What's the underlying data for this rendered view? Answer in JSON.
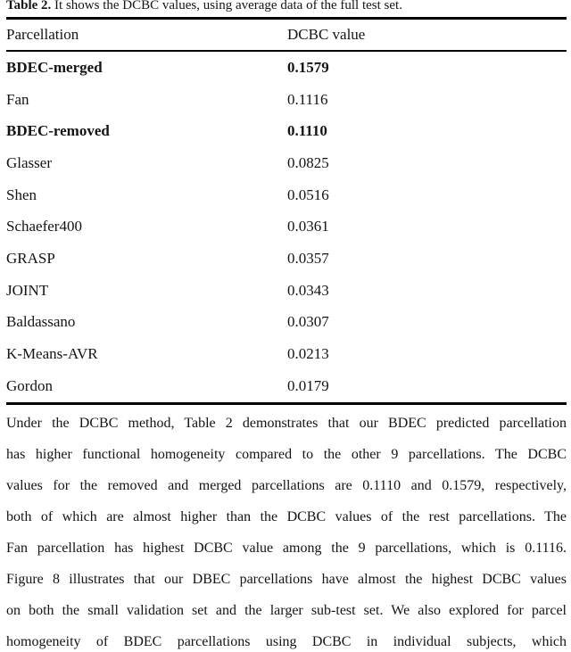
{
  "caption": {
    "label": "Table 2.",
    "text": " It shows the DCBC values, using average data of the full test set."
  },
  "table": {
    "columns": [
      "Parcellation",
      "DCBC value"
    ],
    "rows": [
      {
        "name": "BDEC-merged",
        "value": "0.1579",
        "bold": true
      },
      {
        "name": "Fan",
        "value": "0.1116",
        "bold": false
      },
      {
        "name": "BDEC-removed",
        "value": "0.1110",
        "bold": true
      },
      {
        "name": "Glasser",
        "value": "0.0825",
        "bold": false
      },
      {
        "name": "Shen",
        "value": "0.0516",
        "bold": false
      },
      {
        "name": "Schaefer400",
        "value": "0.0361",
        "bold": false
      },
      {
        "name": "GRASP",
        "value": "0.0357",
        "bold": false
      },
      {
        "name": "JOINT",
        "value": "0.0343",
        "bold": false
      },
      {
        "name": "Baldassano",
        "value": "0.0307",
        "bold": false
      },
      {
        "name": "K-Means-AVR",
        "value": "0.0213",
        "bold": false
      },
      {
        "name": "Gordon",
        "value": "0.0179",
        "bold": false
      }
    ]
  },
  "paragraph": {
    "lines": [
      "Under the DCBC method, Table 2 demonstrates that our BDEC predicted parcellation",
      "has higher functional homogeneity compared to the other 9 parcellations. The DCBC",
      "values for the removed and merged parcellations are 0.1110 and 0.1579, respectively,",
      "both of which are almost higher than the DCBC values of the rest parcellations. The",
      "Fan parcellation has highest DCBC value among the 9 parcellations, which is 0.1116.",
      "Figure 8 illustrates that our DBEC parcellations have almost the highest DCBC values",
      "on both the small validation set and the larger sub-test set. We also explored for parcel",
      "homogeneity of BDEC parcellations using DCBC in individual subjects, which"
    ]
  },
  "colors": {
    "text": "#141414",
    "rule": "#000000",
    "background": "#ffffff"
  }
}
